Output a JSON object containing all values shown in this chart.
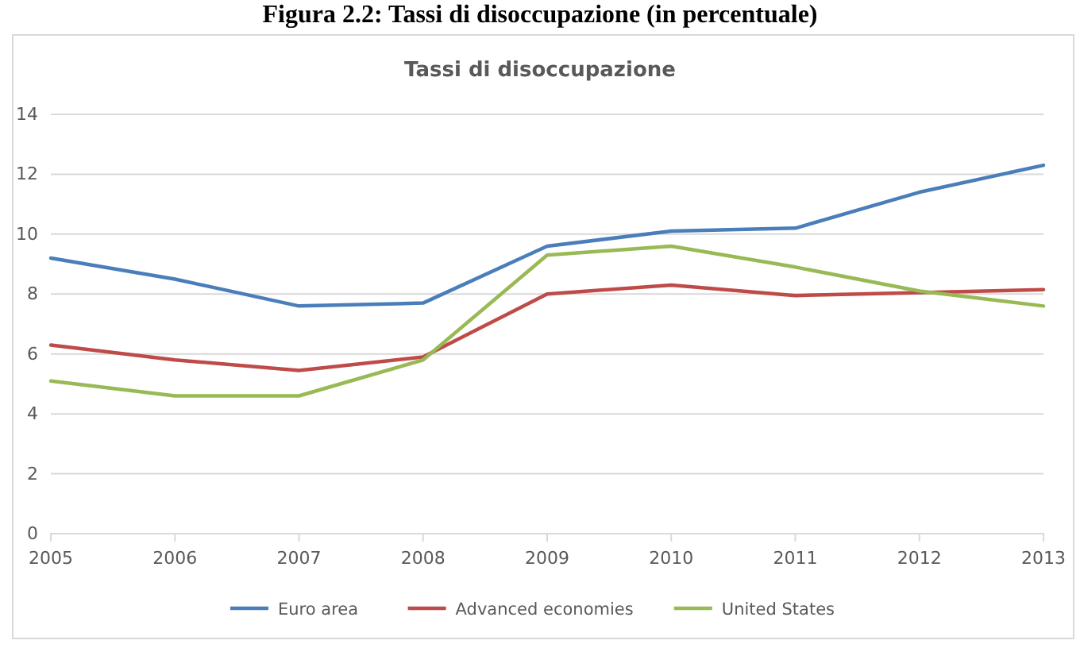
{
  "chart_data": {
    "type": "line",
    "title": "Figura 2.2: Tassi di disoccupazione (in percentuale)",
    "subtitle": "Tassi di disoccupazione",
    "categories": [
      "2005",
      "2006",
      "2007",
      "2008",
      "2009",
      "2010",
      "2011",
      "2012",
      "2013"
    ],
    "series": [
      {
        "name": "Euro area",
        "color": "#4a7ebb",
        "values": [
          9.2,
          8.5,
          7.6,
          7.7,
          9.6,
          10.1,
          10.2,
          11.4,
          12.3
        ]
      },
      {
        "name": "Advanced economies",
        "color": "#be4b48",
        "values": [
          6.3,
          5.8,
          5.45,
          5.9,
          8.0,
          8.3,
          7.95,
          8.05,
          8.15
        ]
      },
      {
        "name": "United States",
        "color": "#98b954",
        "values": [
          5.1,
          4.6,
          4.6,
          5.8,
          9.3,
          9.6,
          8.9,
          8.1,
          7.6
        ]
      }
    ],
    "ylim": [
      0,
      14
    ],
    "yticks": [
      0,
      2,
      4,
      6,
      8,
      10,
      12,
      14
    ],
    "grid": "y",
    "legend": "bottom",
    "marker": "none",
    "line_style": "solid"
  }
}
